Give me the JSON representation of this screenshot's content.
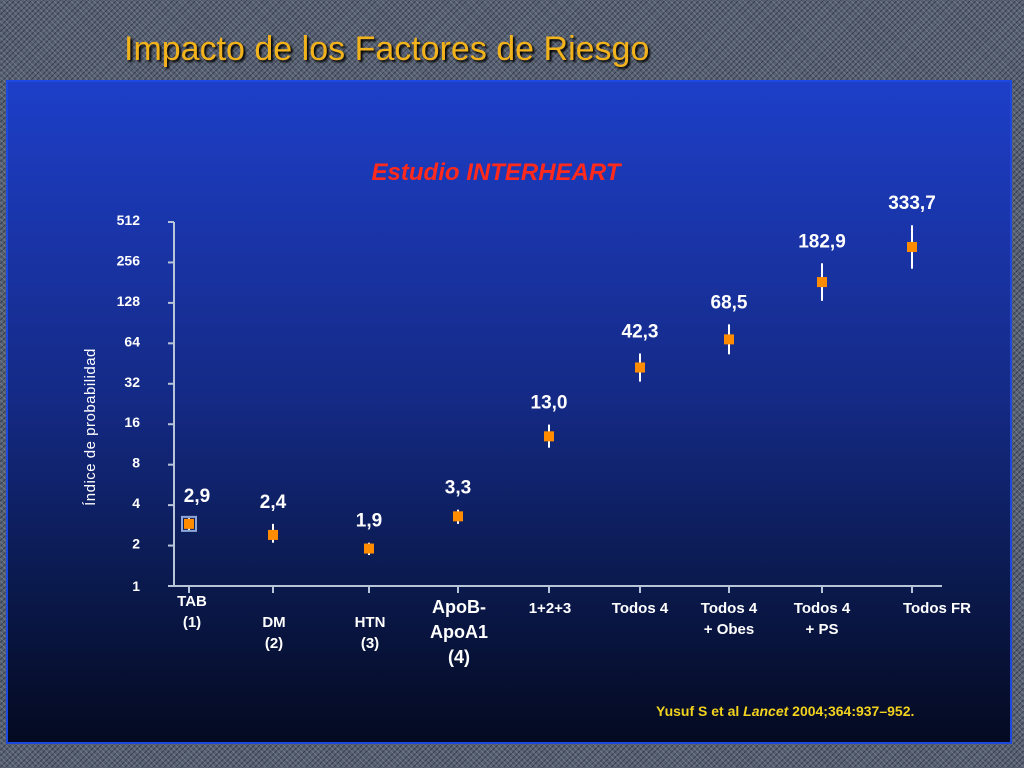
{
  "slide": {
    "title": "Impacto de los Factores de Riesgo",
    "citation_pre": "Yusuf S et al ",
    "citation_journal": "Lancet",
    "citation_post": " 2004;364:937–952."
  },
  "chart_data": {
    "type": "scatter",
    "title": "Estudio INTERHEART",
    "ylabel": "Índice de probabilidad",
    "xlabel": "",
    "yscale": "log2",
    "ylim": [
      1,
      512
    ],
    "yticks": [
      1,
      2,
      4,
      8,
      16,
      32,
      64,
      128,
      256,
      512
    ],
    "ytick_labels": [
      "1",
      "2",
      "4",
      "8",
      "16",
      "32",
      "64",
      "128",
      "256",
      "512"
    ],
    "grid": false,
    "legend": "none",
    "categories": [
      [
        "TAB",
        "(1)"
      ],
      [
        "DM",
        "(2)"
      ],
      [
        "HTN",
        "(3)"
      ],
      [
        "ApoB-",
        "ApoA1",
        "(4)"
      ],
      [
        "1+2+3"
      ],
      [
        "Todos 4"
      ],
      [
        "Todos 4",
        "+ Obes"
      ],
      [
        "Todos 4",
        "+ PS"
      ],
      [
        "Todos FR"
      ]
    ],
    "values": [
      2.9,
      2.4,
      1.9,
      3.3,
      13.0,
      42.3,
      68.5,
      182.9,
      333.7
    ],
    "value_labels": [
      "2,9",
      "2,4",
      "1,9",
      "3,3",
      "13,0",
      "42,3",
      "68,5",
      "182,9",
      "333,7"
    ],
    "ci_low": [
      2.6,
      2.1,
      1.7,
      2.9,
      10.7,
      33.2,
      53.0,
      132.6,
      230.0
    ],
    "ci_high": [
      3.2,
      2.9,
      2.1,
      3.7,
      15.9,
      53.8,
      88.6,
      252.4,
      484.3
    ],
    "marker_color": "#ff8c00",
    "errorbar_color": "#ffffff",
    "axis_color": "#b8c4d8"
  }
}
